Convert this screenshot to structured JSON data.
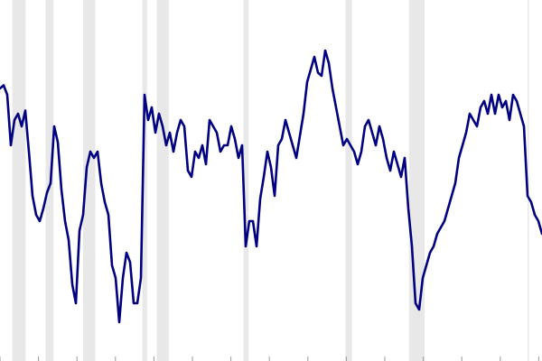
{
  "chart_data": {
    "type": "line",
    "title": "",
    "xlabel": "",
    "ylabel": "",
    "grid": false,
    "legend": "none",
    "line_color": "#000080",
    "band_color": "#e8e8e8",
    "tick_color": "#999999",
    "x_index_range": [
      0,
      150
    ],
    "ylim": [
      0,
      100
    ],
    "shaded_intervals": [
      [
        3.4,
        7.1
      ],
      [
        12.6,
        14.8
      ],
      [
        23.0,
        26.4
      ],
      [
        39.4,
        40.7
      ],
      [
        43.4,
        46.7
      ],
      [
        67.4,
        68.8
      ],
      [
        95.6,
        97.4
      ],
      [
        113.2,
        117.5
      ],
      [
        146.0,
        146.4
      ]
    ],
    "series": [
      {
        "x": [
          0,
          1,
          2,
          3,
          4,
          5,
          6,
          7,
          8,
          9,
          10,
          11,
          12,
          13,
          14,
          15,
          16,
          17,
          18,
          19,
          20,
          21,
          22,
          23,
          24,
          25,
          26,
          27,
          28,
          29,
          30,
          31,
          32,
          33,
          34,
          35,
          36,
          37,
          38,
          39,
          40,
          41,
          42,
          43,
          44,
          45,
          46,
          47,
          48,
          49,
          50,
          51,
          52,
          53,
          54,
          55,
          56,
          57,
          58,
          59,
          60,
          61,
          62,
          63,
          64,
          65,
          66,
          67,
          68,
          69,
          70,
          71,
          72,
          73,
          74,
          75,
          76,
          77,
          78,
          79,
          80,
          81,
          82,
          83,
          84,
          85,
          86,
          87,
          88,
          89,
          90,
          91,
          92,
          93,
          94,
          95,
          96,
          97,
          98,
          99,
          100,
          101,
          102,
          103,
          104,
          105,
          106,
          107,
          108,
          109,
          110,
          111,
          112,
          113,
          114,
          115,
          116,
          117,
          118,
          119,
          120,
          121,
          122,
          123,
          124,
          125,
          126,
          127,
          128,
          129,
          130,
          131,
          132,
          133,
          134,
          135,
          136,
          137,
          138,
          139,
          140,
          141,
          142,
          143,
          144,
          145,
          146,
          147,
          148,
          149,
          150
        ],
        "values": [
          80,
          81,
          78,
          62,
          70,
          72,
          68,
          73,
          60,
          46,
          40,
          38,
          42,
          47,
          50,
          68,
          63,
          48,
          38,
          32,
          18,
          12,
          35,
          40,
          55,
          60,
          58,
          60,
          50,
          44,
          40,
          24,
          20,
          6,
          20,
          28,
          25,
          12,
          12,
          20,
          78,
          70,
          74,
          66,
          72,
          68,
          62,
          66,
          60,
          66,
          70,
          68,
          54,
          52,
          60,
          58,
          62,
          56,
          70,
          68,
          66,
          60,
          62,
          62,
          68,
          64,
          58,
          62,
          30,
          38,
          38,
          30,
          45,
          52,
          60,
          55,
          46,
          62,
          64,
          70,
          66,
          62,
          58,
          65,
          72,
          82,
          86,
          90,
          85,
          84,
          92,
          88,
          80,
          74,
          68,
          62,
          64,
          62,
          60,
          56,
          60,
          68,
          70,
          66,
          62,
          68,
          64,
          58,
          54,
          60,
          56,
          52,
          58,
          42,
          30,
          12,
          10,
          20,
          24,
          28,
          30,
          34,
          36,
          38,
          42,
          46,
          50,
          58,
          62,
          66,
          72,
          70,
          68,
          74,
          76,
          72,
          78,
          72,
          78,
          74,
          76,
          70,
          78,
          76,
          72,
          68,
          46,
          44,
          40,
          38,
          34
        ]
      }
    ]
  }
}
